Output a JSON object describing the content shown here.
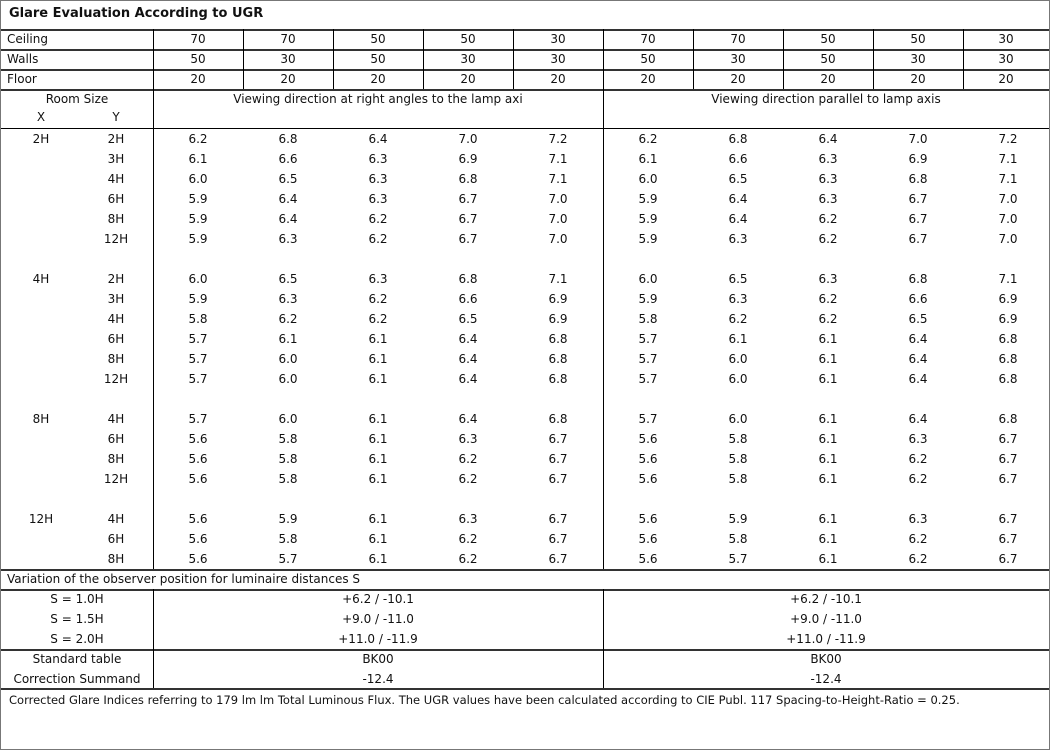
{
  "title": "Glare Evaluation According to UGR",
  "reflectances": {
    "ceiling": {
      "label": "Ceiling",
      "values": [
        "70",
        "70",
        "50",
        "50",
        "30",
        "70",
        "70",
        "50",
        "50",
        "30"
      ]
    },
    "walls": {
      "label": "Walls",
      "values": [
        "50",
        "30",
        "50",
        "30",
        "30",
        "50",
        "30",
        "50",
        "30",
        "30"
      ]
    },
    "floor": {
      "label": "Floor",
      "values": [
        "20",
        "20",
        "20",
        "20",
        "20",
        "20",
        "20",
        "20",
        "20",
        "20"
      ]
    }
  },
  "header": {
    "room_size": "Room Size",
    "x": "X",
    "y": "Y",
    "left_direction": "Viewing direction at right angles to the lamp axi",
    "right_direction": "Viewing direction parallel to lamp axis"
  },
  "groups": [
    {
      "x": "2H",
      "rows": [
        {
          "y": "2H",
          "left": [
            "6.2",
            "6.8",
            "6.4",
            "7.0",
            "7.2"
          ],
          "right": [
            "6.2",
            "6.8",
            "6.4",
            "7.0",
            "7.2"
          ]
        },
        {
          "y": "3H",
          "left": [
            "6.1",
            "6.6",
            "6.3",
            "6.9",
            "7.1"
          ],
          "right": [
            "6.1",
            "6.6",
            "6.3",
            "6.9",
            "7.1"
          ]
        },
        {
          "y": "4H",
          "left": [
            "6.0",
            "6.5",
            "6.3",
            "6.8",
            "7.1"
          ],
          "right": [
            "6.0",
            "6.5",
            "6.3",
            "6.8",
            "7.1"
          ]
        },
        {
          "y": "6H",
          "left": [
            "5.9",
            "6.4",
            "6.3",
            "6.7",
            "7.0"
          ],
          "right": [
            "5.9",
            "6.4",
            "6.3",
            "6.7",
            "7.0"
          ]
        },
        {
          "y": "8H",
          "left": [
            "5.9",
            "6.4",
            "6.2",
            "6.7",
            "7.0"
          ],
          "right": [
            "5.9",
            "6.4",
            "6.2",
            "6.7",
            "7.0"
          ]
        },
        {
          "y": "12H",
          "left": [
            "5.9",
            "6.3",
            "6.2",
            "6.7",
            "7.0"
          ],
          "right": [
            "5.9",
            "6.3",
            "6.2",
            "6.7",
            "7.0"
          ]
        }
      ]
    },
    {
      "x": "4H",
      "rows": [
        {
          "y": "2H",
          "left": [
            "6.0",
            "6.5",
            "6.3",
            "6.8",
            "7.1"
          ],
          "right": [
            "6.0",
            "6.5",
            "6.3",
            "6.8",
            "7.1"
          ]
        },
        {
          "y": "3H",
          "left": [
            "5.9",
            "6.3",
            "6.2",
            "6.6",
            "6.9"
          ],
          "right": [
            "5.9",
            "6.3",
            "6.2",
            "6.6",
            "6.9"
          ]
        },
        {
          "y": "4H",
          "left": [
            "5.8",
            "6.2",
            "6.2",
            "6.5",
            "6.9"
          ],
          "right": [
            "5.8",
            "6.2",
            "6.2",
            "6.5",
            "6.9"
          ]
        },
        {
          "y": "6H",
          "left": [
            "5.7",
            "6.1",
            "6.1",
            "6.4",
            "6.8"
          ],
          "right": [
            "5.7",
            "6.1",
            "6.1",
            "6.4",
            "6.8"
          ]
        },
        {
          "y": "8H",
          "left": [
            "5.7",
            "6.0",
            "6.1",
            "6.4",
            "6.8"
          ],
          "right": [
            "5.7",
            "6.0",
            "6.1",
            "6.4",
            "6.8"
          ]
        },
        {
          "y": "12H",
          "left": [
            "5.7",
            "6.0",
            "6.1",
            "6.4",
            "6.8"
          ],
          "right": [
            "5.7",
            "6.0",
            "6.1",
            "6.4",
            "6.8"
          ]
        }
      ]
    },
    {
      "x": "8H",
      "rows": [
        {
          "y": "4H",
          "left": [
            "5.7",
            "6.0",
            "6.1",
            "6.4",
            "6.8"
          ],
          "right": [
            "5.7",
            "6.0",
            "6.1",
            "6.4",
            "6.8"
          ]
        },
        {
          "y": "6H",
          "left": [
            "5.6",
            "5.8",
            "6.1",
            "6.3",
            "6.7"
          ],
          "right": [
            "5.6",
            "5.8",
            "6.1",
            "6.3",
            "6.7"
          ]
        },
        {
          "y": "8H",
          "left": [
            "5.6",
            "5.8",
            "6.1",
            "6.2",
            "6.7"
          ],
          "right": [
            "5.6",
            "5.8",
            "6.1",
            "6.2",
            "6.7"
          ]
        },
        {
          "y": "12H",
          "left": [
            "5.6",
            "5.8",
            "6.1",
            "6.2",
            "6.7"
          ],
          "right": [
            "5.6",
            "5.8",
            "6.1",
            "6.2",
            "6.7"
          ]
        }
      ]
    },
    {
      "x": "12H",
      "rows": [
        {
          "y": "4H",
          "left": [
            "5.6",
            "5.9",
            "6.1",
            "6.3",
            "6.7"
          ],
          "right": [
            "5.6",
            "5.9",
            "6.1",
            "6.3",
            "6.7"
          ]
        },
        {
          "y": "6H",
          "left": [
            "5.6",
            "5.8",
            "6.1",
            "6.2",
            "6.7"
          ],
          "right": [
            "5.6",
            "5.8",
            "6.1",
            "6.2",
            "6.7"
          ]
        },
        {
          "y": "8H",
          "left": [
            "5.6",
            "5.7",
            "6.1",
            "6.2",
            "6.7"
          ],
          "right": [
            "5.6",
            "5.7",
            "6.1",
            "6.2",
            "6.7"
          ]
        }
      ]
    }
  ],
  "variation": {
    "label": "Variation of the observer position for luminaire distances S",
    "rows": [
      {
        "s": "S = 1.0H",
        "left": "+6.2 / -10.1",
        "right": "+6.2 / -10.1"
      },
      {
        "s": "S = 1.5H",
        "left": "+9.0 / -11.0",
        "right": "+9.0 / -11.0"
      },
      {
        "s": "S = 2.0H",
        "left": "+11.0 / -11.9",
        "right": "+11.0 / -11.9"
      }
    ]
  },
  "standard": {
    "rows": [
      {
        "label": "Standard table",
        "left": "BK00",
        "right": "BK00"
      },
      {
        "label": "Correction Summand",
        "left": "-12.4",
        "right": "-12.4"
      }
    ]
  },
  "footer": "Corrected Glare Indices referring to 179 lm lm Total Luminous Flux. The UGR values have been calculated according to CIE Publ. 117     Spacing-to-Height-Ratio = 0.25."
}
